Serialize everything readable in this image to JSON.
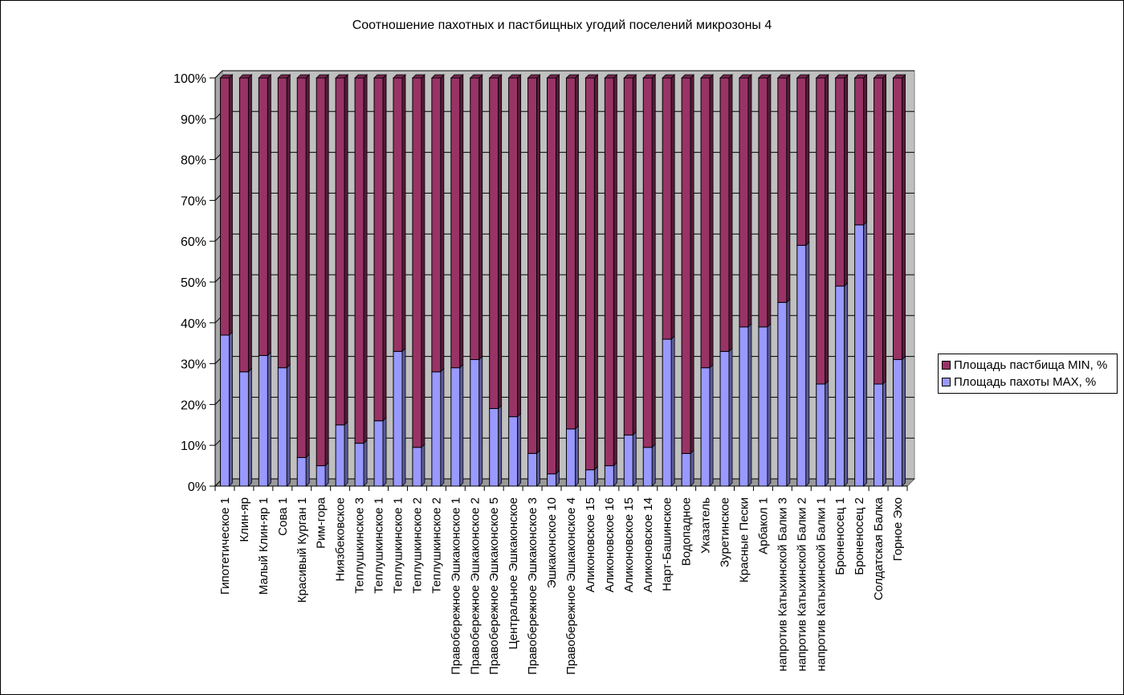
{
  "chart_data": {
    "type": "bar",
    "stacked": "percent",
    "title": "Соотношение пахотных и пастбищных угодий поселений микрозоны 4",
    "ylim": [
      0,
      100
    ],
    "yticks": [
      "0%",
      "10%",
      "20%",
      "30%",
      "40%",
      "50%",
      "60%",
      "70%",
      "80%",
      "90%",
      "100%"
    ],
    "grid": true,
    "legend_position": "right",
    "categories": [
      "Гипотетическое 1",
      "Клин-яр",
      "Малый Клин-яр 1",
      "Сова 1",
      "Красивый Курган 1",
      "Рим-гора",
      "Ниязбековское",
      "Теплушкинское 3",
      "Теплушкинское 1",
      "Теплушкинское 1",
      "Теплушкинское 2",
      "Теплушкинское 2",
      "Правобережное Эшкаконское 1",
      "Правобережное Эшкаконское 2",
      "Правобережное Эшкаконское 5",
      "Центральное Эшкаконское",
      "Правобережное Эшкаконское 3",
      "Эшкаконское 10",
      "Правобережное Эшкаконское 4",
      "Аликоновское 15",
      "Аликоновское 16",
      "Аликоновское 15",
      "Аликоновское 14",
      "Нарт-Башинское",
      "Водопадное",
      "Указатель",
      "Зуретинское",
      "Красные Пески",
      "Арбакол 1",
      "напротив Катыхинской Балки 3",
      "напротив Катыхинской Балки 2",
      "напротив Катыхинской Балки 1",
      "Броненосец 1",
      "Броненосец 2",
      "Солдатская Балка",
      "Горное Эхо"
    ],
    "series": [
      {
        "name": "Площадь пахоты MAX, %",
        "color": "#9999FF",
        "values": [
          37,
          28,
          32,
          29,
          7,
          5,
          15,
          10.5,
          16,
          33,
          9.5,
          28,
          29,
          31,
          19,
          17,
          8,
          3,
          14,
          4,
          5,
          12.5,
          9.5,
          36,
          8,
          29,
          33,
          39,
          39,
          45,
          59,
          25,
          49,
          64,
          25,
          31
        ]
      },
      {
        "name": "Площадь пастбища MIN, %",
        "color": "#993366",
        "values": [
          63,
          72,
          68,
          71,
          93,
          95,
          85,
          89.5,
          84,
          67,
          90.5,
          72,
          71,
          69,
          81,
          83,
          92,
          97,
          86,
          96,
          95,
          87.5,
          90.5,
          64,
          92,
          71,
          67,
          61,
          61,
          55,
          41,
          75,
          51,
          36,
          75,
          69
        ]
      }
    ]
  }
}
